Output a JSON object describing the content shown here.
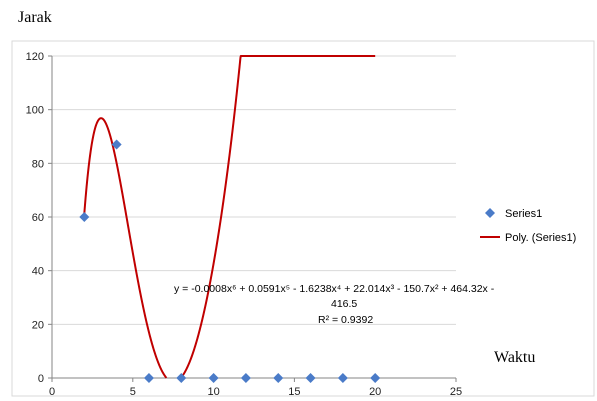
{
  "page": {
    "top_label": "Jarak",
    "side_label": "Waktu"
  },
  "chart_data": {
    "type": "scatter",
    "title": "",
    "xlabel": "",
    "ylabel": "",
    "xlim": [
      0,
      25
    ],
    "ylim": [
      0,
      120
    ],
    "x_ticks": [
      0,
      5,
      10,
      15,
      20,
      25
    ],
    "y_ticks": [
      0,
      20,
      40,
      60,
      80,
      100,
      120
    ],
    "grid": "horizontal",
    "legend_position": "right",
    "series": [
      {
        "name": "Series1",
        "marker": "diamond",
        "color": "#4a7bc8",
        "x": [
          2,
          4,
          6,
          8,
          10,
          12,
          14,
          16,
          18,
          20
        ],
        "y": [
          60,
          87,
          0,
          0,
          0,
          0,
          0,
          0,
          0,
          0
        ]
      }
    ],
    "trendline": {
      "name": "Poly. (Series1)",
      "kind": "polynomial",
      "order": 6,
      "color": "#c00000",
      "coefficients_high_to_low": [
        -0.0008,
        0.0591,
        -1.6238,
        22.014,
        -150.7,
        464.32,
        -416.5
      ],
      "equation_line1": "y = -0.0008x⁶ + 0.0591x⁵ - 1.6238x⁴ + 22.014x³ - 150.7x² + 464.32x -",
      "equation_line2": "416.5",
      "r_squared": "R² = 0.9392"
    }
  }
}
